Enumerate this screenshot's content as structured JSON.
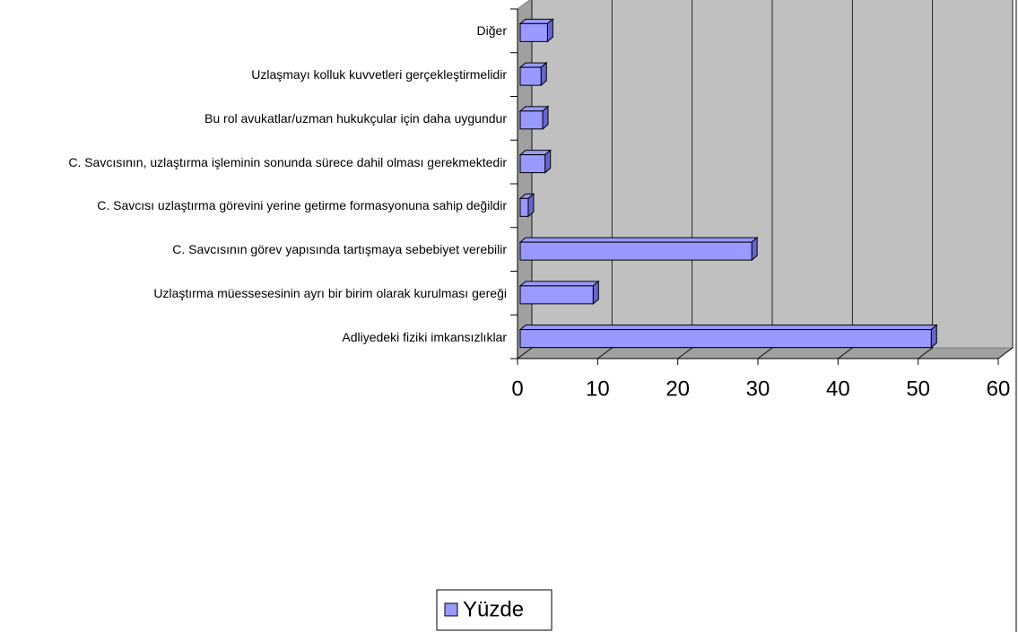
{
  "chart_data": {
    "type": "bar",
    "orientation": "horizontal",
    "categories": [
      "Diğer",
      "Uzlaşmayı kolluk kuvvetleri gerçekleştirmelidir",
      "Bu rol avukatlar/uzman hukukçular için daha uygundur",
      "C. Savcısının, uzlaştırma işleminin sonunda sürece dahil olması gerekmektedir",
      "C. Savcısı uzlaştırma görevini yerine getirme formasyonuna sahip değildir",
      "C. Savcısının görev yapısında tartışmaya sebebiyet verebilir",
      "Uzlaştırma müessesesinin ayrı bir birim olarak kurulması gereği",
      "Adliyedeki fiziki imkansızlıklar"
    ],
    "series": [
      {
        "name": "Yüzde",
        "color": "#9999ff",
        "values": [
          3.4,
          2.6,
          2.8,
          3.1,
          1.0,
          28.9,
          9.1,
          51.3
        ]
      }
    ],
    "xlim": [
      0,
      60
    ],
    "xticks": [
      0,
      10,
      20,
      30,
      40,
      50,
      60
    ],
    "grid": true,
    "legend": "bottom"
  }
}
